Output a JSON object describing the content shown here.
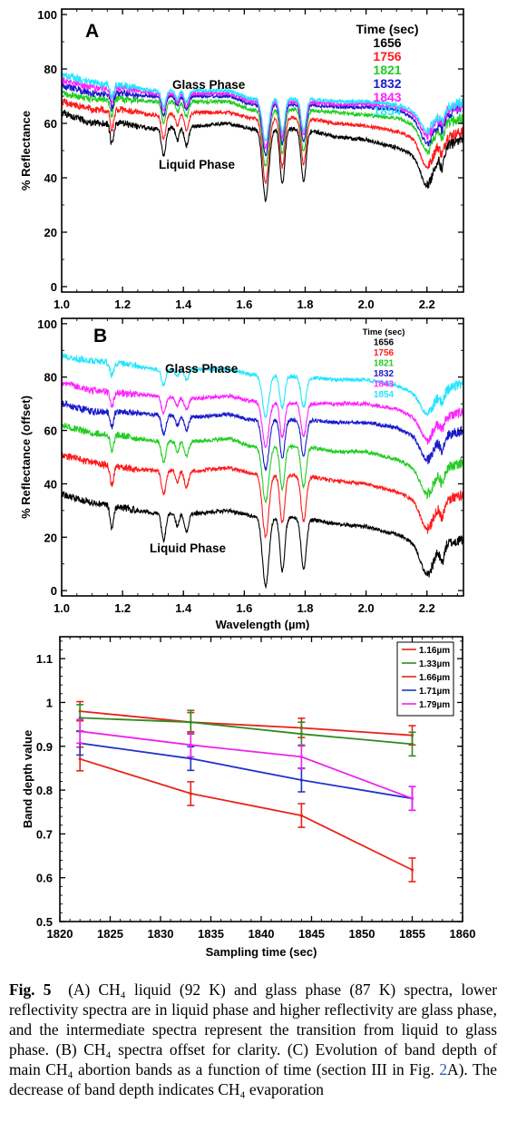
{
  "chart_data": [
    {
      "type": "line",
      "panel_label": "A",
      "xlabel": "",
      "ylabel": "% Reflectance",
      "xlim": [
        1.0,
        2.32
      ],
      "ylim": [
        -2,
        102
      ],
      "x_ticks": [
        "1.0",
        "1.2",
        "1.4",
        "1.6",
        "1.8",
        "2.0",
        "2.2"
      ],
      "y_ticks": [
        "0",
        "20",
        "40",
        "60",
        "80",
        "100"
      ],
      "legend_title": "Time (sec)",
      "legend_position": "top-right",
      "annotations": [
        "Glass Phase",
        "Liquid Phase"
      ],
      "band_depth_factors": [
        1.0,
        0.9,
        0.8,
        0.72,
        0.65,
        0.6
      ],
      "series": [
        {
          "name": "1656",
          "color": "#000000",
          "baseline": [
            [
              1.0,
              64
            ],
            [
              1.1,
              60
            ],
            [
              1.2,
              60
            ],
            [
              1.3,
              58
            ],
            [
              1.45,
              59
            ],
            [
              1.55,
              60
            ],
            [
              1.62,
              58
            ],
            [
              1.8,
              58
            ],
            [
              1.9,
              55
            ],
            [
              2.0,
              54
            ],
            [
              2.1,
              51
            ],
            [
              2.2,
              47
            ],
            [
              2.32,
              55
            ]
          ]
        },
        {
          "name": "1756",
          "color": "#ff1a1a",
          "baseline": [
            [
              1.0,
              68
            ],
            [
              1.1,
              65
            ],
            [
              1.2,
              65
            ],
            [
              1.3,
              63
            ],
            [
              1.45,
              64
            ],
            [
              1.55,
              64
            ],
            [
              1.62,
              62
            ],
            [
              1.8,
              62
            ],
            [
              1.9,
              60
            ],
            [
              2.0,
              59
            ],
            [
              2.1,
              57
            ],
            [
              2.2,
              53
            ],
            [
              2.32,
              57
            ]
          ]
        },
        {
          "name": "1821",
          "color": "#22cc22",
          "baseline": [
            [
              1.0,
              71
            ],
            [
              1.1,
              69
            ],
            [
              1.2,
              69
            ],
            [
              1.3,
              68
            ],
            [
              1.45,
              68
            ],
            [
              1.55,
              68
            ],
            [
              1.62,
              65
            ],
            [
              1.8,
              65
            ],
            [
              1.9,
              64
            ],
            [
              2.0,
              63
            ],
            [
              2.1,
              62
            ],
            [
              2.2,
              58
            ],
            [
              2.32,
              62
            ]
          ]
        },
        {
          "name": "1832",
          "color": "#1a1acc",
          "baseline": [
            [
              1.0,
              74
            ],
            [
              1.1,
              71
            ],
            [
              1.2,
              71
            ],
            [
              1.3,
              70
            ],
            [
              1.45,
              70
            ],
            [
              1.55,
              70
            ],
            [
              1.62,
              67
            ],
            [
              1.8,
              67
            ],
            [
              1.9,
              66
            ],
            [
              2.0,
              66
            ],
            [
              2.1,
              65
            ],
            [
              2.2,
              60
            ],
            [
              2.32,
              66
            ]
          ]
        },
        {
          "name": "1843",
          "color": "#ff22ff",
          "baseline": [
            [
              1.0,
              76
            ],
            [
              1.1,
              73
            ],
            [
              1.2,
              73
            ],
            [
              1.3,
              71
            ],
            [
              1.45,
              71
            ],
            [
              1.55,
              71
            ],
            [
              1.62,
              68
            ],
            [
              1.8,
              68
            ],
            [
              1.9,
              67
            ],
            [
              2.0,
              67
            ],
            [
              2.1,
              66
            ],
            [
              2.2,
              62
            ],
            [
              2.32,
              67
            ]
          ]
        },
        {
          "name": "1854",
          "color": "#22e5ff",
          "baseline": [
            [
              1.0,
              78
            ],
            [
              1.1,
              75
            ],
            [
              1.2,
              74
            ],
            [
              1.3,
              72
            ],
            [
              1.45,
              72
            ],
            [
              1.55,
              72
            ],
            [
              1.62,
              69
            ],
            [
              1.8,
              69
            ],
            [
              1.9,
              68
            ],
            [
              2.0,
              68
            ],
            [
              2.1,
              67
            ],
            [
              2.2,
              63
            ],
            [
              2.32,
              68
            ]
          ]
        }
      ],
      "absorption_bands": [
        {
          "center": 1.165,
          "width": 0.008,
          "depth": 8
        },
        {
          "center": 1.335,
          "width": 0.01,
          "depth": 10
        },
        {
          "center": 1.38,
          "width": 0.008,
          "depth": 5
        },
        {
          "center": 1.41,
          "width": 0.01,
          "depth": 7
        },
        {
          "center": 1.67,
          "width": 0.015,
          "depth": 26
        },
        {
          "center": 1.725,
          "width": 0.011,
          "depth": 20
        },
        {
          "center": 1.795,
          "width": 0.012,
          "depth": 19
        },
        {
          "center": 2.2,
          "width": 0.03,
          "depth": 10
        },
        {
          "center": 2.25,
          "width": 0.01,
          "depth": 6
        }
      ]
    },
    {
      "type": "line",
      "panel_label": "B",
      "xlabel": "Wavelength (µm)",
      "ylabel": "% Reflectance (offset)",
      "xlim": [
        1.0,
        2.32
      ],
      "ylim": [
        -2,
        102
      ],
      "x_ticks": [
        "1.0",
        "1.2",
        "1.4",
        "1.6",
        "1.8",
        "2.0",
        "2.2"
      ],
      "y_ticks": [
        "0",
        "20",
        "40",
        "60",
        "80",
        "100"
      ],
      "legend_title": "Time (sec)",
      "legend_position": "top-right",
      "annotations": [
        "Glass Phase",
        "Liquid Phase"
      ],
      "band_depth_factors": [
        1.0,
        0.9,
        0.8,
        0.72,
        0.65,
        0.6
      ],
      "series": [
        {
          "name": "1656",
          "color": "#000000",
          "baseline": [
            [
              1.0,
              36
            ],
            [
              1.1,
              33
            ],
            [
              1.2,
              31
            ],
            [
              1.3,
              29
            ],
            [
              1.45,
              29
            ],
            [
              1.55,
              30
            ],
            [
              1.62,
              28
            ],
            [
              1.8,
              27
            ],
            [
              1.9,
              25
            ],
            [
              2.0,
              24
            ],
            [
              2.1,
              21
            ],
            [
              2.2,
              16
            ],
            [
              2.32,
              19
            ]
          ]
        },
        {
          "name": "1756",
          "color": "#ff1a1a",
          "baseline": [
            [
              1.0,
              51
            ],
            [
              1.1,
              48
            ],
            [
              1.2,
              46
            ],
            [
              1.3,
              45
            ],
            [
              1.45,
              45
            ],
            [
              1.55,
              46
            ],
            [
              1.62,
              44
            ],
            [
              1.8,
              43
            ],
            [
              1.9,
              41
            ],
            [
              2.0,
              40
            ],
            [
              2.1,
              37
            ],
            [
              2.2,
              32
            ],
            [
              2.32,
              36
            ]
          ]
        },
        {
          "name": "1821",
          "color": "#22cc22",
          "baseline": [
            [
              1.0,
              62
            ],
            [
              1.1,
              59
            ],
            [
              1.2,
              58
            ],
            [
              1.3,
              56
            ],
            [
              1.45,
              56
            ],
            [
              1.55,
              57
            ],
            [
              1.62,
              54
            ],
            [
              1.8,
              54
            ],
            [
              1.9,
              52
            ],
            [
              2.0,
              52
            ],
            [
              2.1,
              49
            ],
            [
              2.2,
              44
            ],
            [
              2.32,
              48
            ]
          ]
        },
        {
          "name": "1832",
          "color": "#1a1acc",
          "baseline": [
            [
              1.0,
              70
            ],
            [
              1.1,
              67
            ],
            [
              1.2,
              67
            ],
            [
              1.3,
              66
            ],
            [
              1.45,
              65
            ],
            [
              1.55,
              66
            ],
            [
              1.62,
              64
            ],
            [
              1.8,
              64
            ],
            [
              1.9,
              63
            ],
            [
              2.0,
              63
            ],
            [
              2.1,
              61
            ],
            [
              2.2,
              56
            ],
            [
              2.32,
              60
            ]
          ]
        },
        {
          "name": "1843",
          "color": "#ff22ff",
          "baseline": [
            [
              1.0,
              78
            ],
            [
              1.1,
              75
            ],
            [
              1.2,
              74
            ],
            [
              1.3,
              73
            ],
            [
              1.45,
              72
            ],
            [
              1.55,
              73
            ],
            [
              1.62,
              71
            ],
            [
              1.8,
              70
            ],
            [
              1.9,
              70
            ],
            [
              2.0,
              70
            ],
            [
              2.1,
              68
            ],
            [
              2.2,
              63
            ],
            [
              2.32,
              67
            ]
          ]
        },
        {
          "name": "1854",
          "color": "#22e5ff",
          "baseline": [
            [
              1.0,
              88
            ],
            [
              1.1,
              86
            ],
            [
              1.2,
              85
            ],
            [
              1.3,
              83
            ],
            [
              1.45,
              83
            ],
            [
              1.55,
              83
            ],
            [
              1.62,
              81
            ],
            [
              1.8,
              80
            ],
            [
              1.9,
              79
            ],
            [
              2.0,
              79
            ],
            [
              2.1,
              77
            ],
            [
              2.2,
              72
            ],
            [
              2.32,
              78
            ]
          ]
        }
      ],
      "absorption_bands": [
        {
          "center": 1.165,
          "width": 0.008,
          "depth": 8
        },
        {
          "center": 1.335,
          "width": 0.01,
          "depth": 10
        },
        {
          "center": 1.38,
          "width": 0.008,
          "depth": 5
        },
        {
          "center": 1.41,
          "width": 0.01,
          "depth": 7
        },
        {
          "center": 1.67,
          "width": 0.015,
          "depth": 26
        },
        {
          "center": 1.725,
          "width": 0.011,
          "depth": 20
        },
        {
          "center": 1.795,
          "width": 0.012,
          "depth": 19
        },
        {
          "center": 2.2,
          "width": 0.03,
          "depth": 10
        },
        {
          "center": 2.25,
          "width": 0.01,
          "depth": 6
        }
      ]
    },
    {
      "type": "line",
      "panel_label": "",
      "xlabel": "Sampling time (sec)",
      "ylabel": "Band depth value",
      "xlim": [
        1820,
        1860
      ],
      "ylim": [
        0.5,
        1.15
      ],
      "x_ticks": [
        "1820",
        "1825",
        "1830",
        "1835",
        "1840",
        "1845",
        "1850",
        "1855",
        "1860"
      ],
      "y_ticks": [
        "0.5",
        "0.6",
        "0.7",
        "0.8",
        "0.9",
        "1",
        "1.1"
      ],
      "legend_position": "top-right",
      "x": [
        1822,
        1833,
        1844,
        1855
      ],
      "series": [
        {
          "name": "1.16µm",
          "color": "#e8231a",
          "values": [
            0.98,
            0.955,
            0.942,
            0.925
          ],
          "errors": [
            0.022,
            0.022,
            0.022,
            0.022
          ]
        },
        {
          "name": "1.33µm",
          "color": "#2e8b1e",
          "values": [
            0.965,
            0.955,
            0.928,
            0.905
          ],
          "errors": [
            0.03,
            0.027,
            0.027,
            0.027
          ]
        },
        {
          "name": "1.66µm",
          "color": "#e8231a",
          "values": [
            0.871,
            0.792,
            0.742,
            0.618
          ],
          "errors": [
            0.027,
            0.027,
            0.027,
            0.027
          ]
        },
        {
          "name": "1.71µm",
          "color": "#2233cc",
          "values": [
            0.907,
            0.872,
            0.823,
            0.781
          ],
          "errors": [
            0.027,
            0.027,
            0.027,
            0.027
          ]
        },
        {
          "name": "1.79µm",
          "color": "#ee22ee",
          "values": [
            0.934,
            0.903,
            0.876,
            0.781
          ],
          "errors": [
            0.027,
            0.027,
            0.027,
            0.027
          ]
        }
      ]
    }
  ],
  "caption": {
    "fig_label": "Fig. 5",
    "line1": "(A) CH₄ liquid (92 K) and glass phase (87 K) spectra, lower reflectivity spectra are in liquid phase and higher reflectivity are glass phase, and the intermediate spectra represent the transition from liquid to glass phase. (B) CH₄ spectra offset for clarity. (C) Evolution of band depth of main CH₄ abortion bands as a function of time (section III in Fig. ",
    "fig_ref": "2",
    "line2": "A). The decrease of band depth indicates CH₄ evaporation"
  }
}
